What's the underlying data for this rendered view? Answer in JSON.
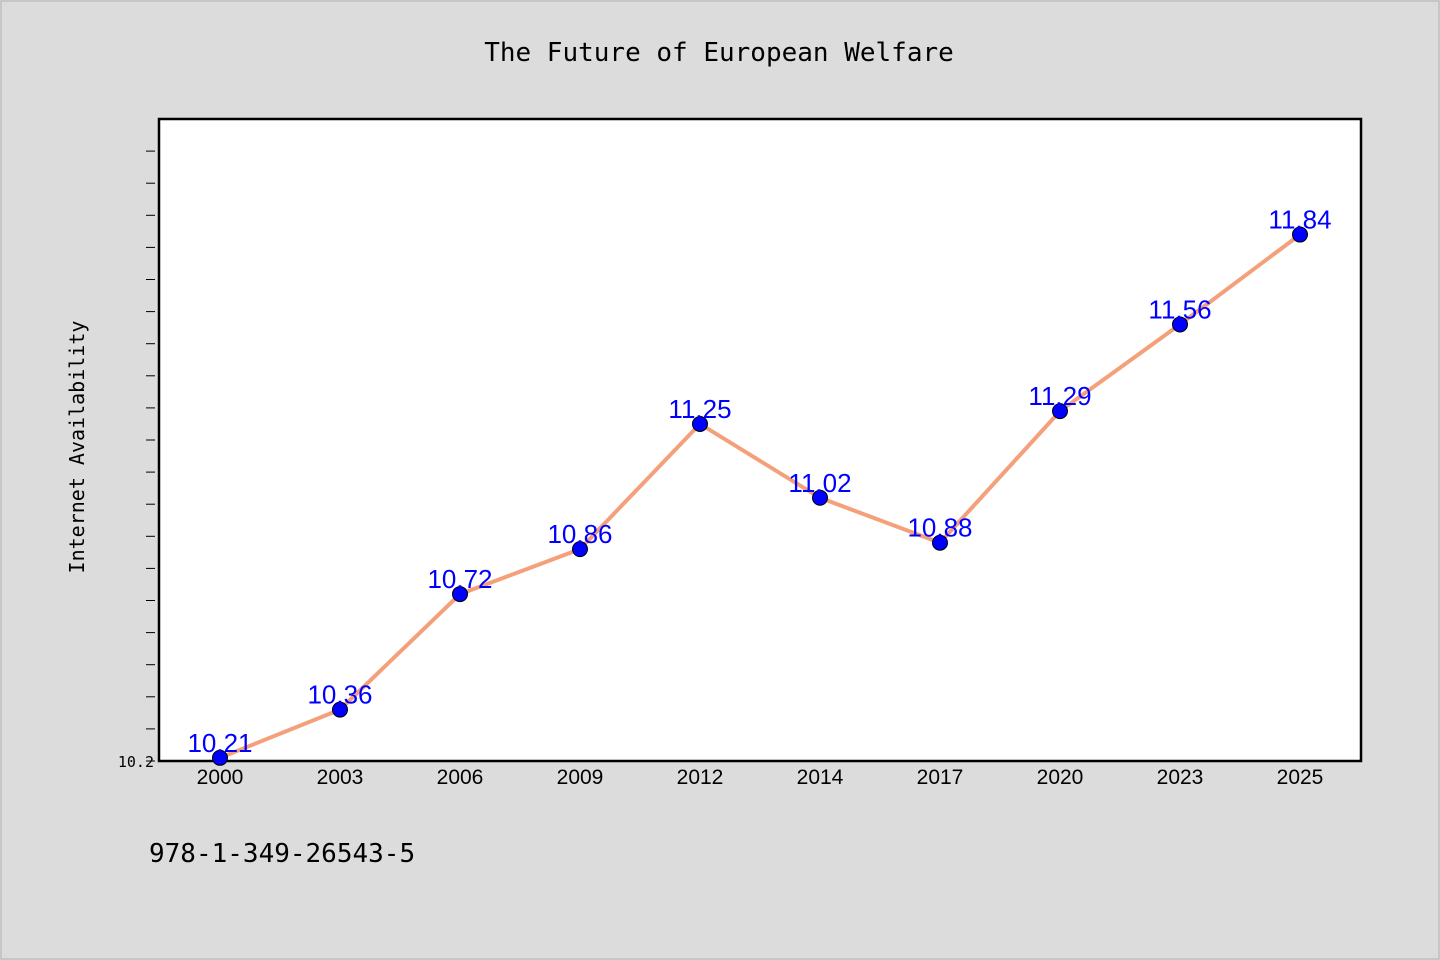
{
  "chart_data": {
    "type": "line",
    "title": "The Future of European Welfare",
    "xlabel": "",
    "ylabel": "Internet Availability",
    "ytick_labels": [
      "10.2"
    ],
    "ylim": [
      10.2,
      12.2
    ],
    "categories": [
      "2000",
      "2003",
      "2006",
      "2009",
      "2012",
      "2014",
      "2017",
      "2020",
      "2023",
      "2025"
    ],
    "series": [
      {
        "values": [
          10.21,
          10.36,
          10.72,
          10.86,
          11.25,
          11.02,
          10.88,
          11.29,
          11.56,
          11.84
        ],
        "data_labels": [
          "10.21",
          "10.36",
          "10.72",
          "10.86",
          "11.25",
          "11.02",
          "10.88",
          "11.29",
          "11.56",
          "11.84"
        ],
        "line_color": "#f4a07a",
        "marker_color": "#0000ff",
        "label_color": "#0000ff"
      }
    ],
    "grid": false,
    "background": "#dcdcdc",
    "plot_background": "#ffffff"
  },
  "footer": {
    "isbn": "978-1-349-26543-5"
  }
}
